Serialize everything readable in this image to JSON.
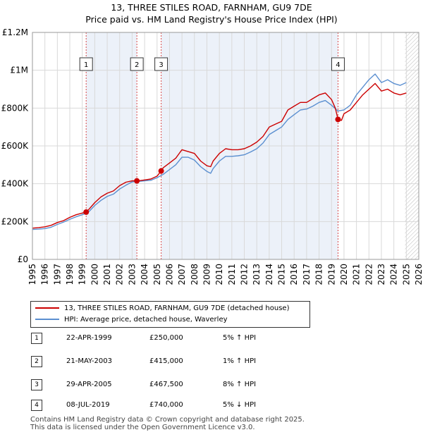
{
  "title_line1": "13, THREE STILES ROAD, FARNHAM, GU9 7DE",
  "title_line2": "Price paid vs. HM Land Registry's House Price Index (HPI)",
  "legend": {
    "property": "13, THREE STILES ROAD, FARNHAM, GU9 7DE (detached house)",
    "hpi": "HPI: Average price, detached house, Waverley"
  },
  "colors": {
    "property": "#cc0000",
    "hpi": "#5b8fd0",
    "shade": "#dfe8f5",
    "marker": "#cc0000"
  },
  "sales": [
    {
      "num": "1",
      "date": "22-APR-1999",
      "price": "£250,000",
      "hpi": "5% ↑ HPI"
    },
    {
      "num": "2",
      "date": "21-MAY-2003",
      "price": "£415,000",
      "hpi": "1% ↑ HPI"
    },
    {
      "num": "3",
      "date": "29-APR-2005",
      "price": "£467,500",
      "hpi": "8% ↑ HPI"
    },
    {
      "num": "4",
      "date": "08-JUL-2019",
      "price": "£740,000",
      "hpi": "5% ↓ HPI"
    }
  ],
  "footer_line1": "Contains HM Land Registry data © Crown copyright and database right 2025.",
  "footer_line2": "This data is licensed under the Open Government Licence v3.0.",
  "chart_data": {
    "type": "line",
    "title": "13, THREE STILES ROAD, FARNHAM, GU9 7DE — Price paid vs. HM Land Registry's House Price Index (HPI)",
    "xlim": [
      1995,
      2026
    ],
    "ylim": [
      0,
      1200000
    ],
    "x_ticks": [
      1995,
      1996,
      1997,
      1998,
      1999,
      2000,
      2001,
      2002,
      2003,
      2004,
      2005,
      2006,
      2007,
      2008,
      2009,
      2010,
      2011,
      2012,
      2013,
      2014,
      2015,
      2016,
      2017,
      2018,
      2019,
      2020,
      2021,
      2022,
      2023,
      2024,
      2025,
      2026
    ],
    "y_ticks": [
      {
        "value": 0,
        "label": "£0"
      },
      {
        "value": 200000,
        "label": "£200K"
      },
      {
        "value": 400000,
        "label": "£400K"
      },
      {
        "value": 600000,
        "label": "£600K"
      },
      {
        "value": 800000,
        "label": "£800K"
      },
      {
        "value": 1000000,
        "label": "£1M"
      },
      {
        "value": 1200000,
        "label": "£1.2M"
      }
    ],
    "grid": true,
    "shaded_spans": [
      {
        "from": 1999.31,
        "to": 2003.38,
        "note": "between sales 1 and 2"
      },
      {
        "from": 2005.33,
        "to": 2019.52,
        "note": "between sales 3 and 4"
      },
      {
        "from": 2024.9,
        "to": 2026,
        "note": "forecast (hatched)"
      }
    ],
    "series": [
      {
        "name": "13, THREE STILES ROAD, FARNHAM, GU9 7DE (detached house)",
        "x": [
          1995,
          1995.5,
          1996,
          1996.5,
          1997,
          1997.5,
          1998,
          1998.5,
          1999,
          1999.3,
          1999.5,
          2000,
          2000.5,
          2001,
          2001.5,
          2002,
          2002.5,
          2003,
          2003.4,
          2003.5,
          2004,
          2004.5,
          2005,
          2005.33,
          2005.5,
          2006,
          2006.5,
          2007,
          2007.5,
          2008,
          2008.5,
          2009,
          2009.3,
          2009.5,
          2010,
          2010.5,
          2011,
          2011.5,
          2012,
          2012.5,
          2013,
          2013.5,
          2014,
          2014.5,
          2015,
          2015.5,
          2016,
          2016.5,
          2017,
          2017.5,
          2018,
          2018.5,
          2019,
          2019.3,
          2019.52,
          2019.8,
          2020,
          2020.5,
          2021,
          2021.5,
          2022,
          2022.5,
          2023,
          2023.5,
          2024,
          2024.5,
          2025
        ],
        "values": [
          165000,
          168000,
          172000,
          180000,
          195000,
          205000,
          222000,
          236000,
          245000,
          250000,
          262000,
          300000,
          330000,
          350000,
          362000,
          390000,
          408000,
          415000,
          415000,
          415000,
          420000,
          425000,
          440000,
          467500,
          485000,
          510000,
          535000,
          580000,
          570000,
          560000,
          520000,
          495000,
          490000,
          520000,
          560000,
          585000,
          580000,
          580000,
          585000,
          600000,
          620000,
          650000,
          700000,
          715000,
          730000,
          790000,
          810000,
          830000,
          830000,
          850000,
          870000,
          880000,
          845000,
          800000,
          740000,
          735000,
          770000,
          790000,
          830000,
          870000,
          900000,
          930000,
          890000,
          900000,
          880000,
          870000,
          880000
        ]
      },
      {
        "name": "HPI: Average price, detached house, Waverley",
        "x": [
          1995,
          1995.5,
          1996,
          1996.5,
          1997,
          1997.5,
          1998,
          1998.5,
          1999,
          1999.5,
          2000,
          2000.5,
          2001,
          2001.5,
          2002,
          2002.5,
          2003,
          2003.5,
          2004,
          2004.5,
          2005,
          2005.5,
          2006,
          2006.5,
          2007,
          2007.5,
          2008,
          2008.5,
          2009,
          2009.3,
          2009.5,
          2010,
          2010.5,
          2011,
          2011.5,
          2012,
          2012.5,
          2013,
          2013.5,
          2014,
          2014.5,
          2015,
          2015.5,
          2016,
          2016.5,
          2017,
          2017.5,
          2018,
          2018.5,
          2019,
          2019.5,
          2020,
          2020.5,
          2021,
          2021.5,
          2022,
          2022.5,
          2023,
          2023.5,
          2024,
          2024.5,
          2025
        ],
        "values": [
          158000,
          160000,
          163000,
          170000,
          185000,
          197000,
          212000,
          225000,
          236000,
          250000,
          285000,
          312000,
          333000,
          345000,
          372000,
          392000,
          410000,
          412000,
          415000,
          418000,
          432000,
          450000,
          475000,
          500000,
          540000,
          540000,
          525000,
          490000,
          465000,
          455000,
          480000,
          520000,
          545000,
          545000,
          548000,
          553000,
          568000,
          585000,
          615000,
          660000,
          680000,
          700000,
          740000,
          765000,
          790000,
          795000,
          810000,
          830000,
          840000,
          815000,
          785000,
          790000,
          815000,
          870000,
          910000,
          950000,
          980000,
          935000,
          950000,
          930000,
          920000,
          935000
        ]
      }
    ],
    "markers": [
      {
        "label": "1",
        "x": 1999.31,
        "y": 250000
      },
      {
        "label": "2",
        "x": 2003.38,
        "y": 415000
      },
      {
        "label": "3",
        "x": 2005.33,
        "y": 467500
      },
      {
        "label": "4",
        "x": 2019.52,
        "y": 740000
      }
    ]
  }
}
